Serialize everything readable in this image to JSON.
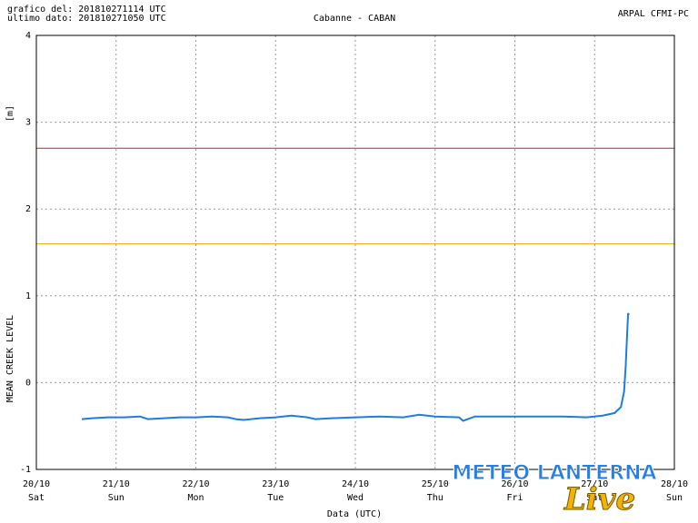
{
  "chart_data": {
    "type": "line",
    "header": [
      "grafico del: 201810271114 UTC",
      "ultimo dato: 201810271050 UTC"
    ],
    "title": "Cabanne - CABAN",
    "source": "ARPAL CFMI-PC",
    "y_label": "MEAN CREEK LEVEL",
    "y_unit": "[m]",
    "x_label": "Data (UTC)",
    "xlim": [
      20,
      28
    ],
    "xticks": [
      {
        "value": 20,
        "label": "20/10",
        "day": "Sat"
      },
      {
        "value": 21,
        "label": "21/10",
        "day": "Sun"
      },
      {
        "value": 22,
        "label": "22/10",
        "day": "Mon"
      },
      {
        "value": 23,
        "label": "23/10",
        "day": "Tue"
      },
      {
        "value": 24,
        "label": "24/10",
        "day": "Wed"
      },
      {
        "value": 25,
        "label": "25/10",
        "day": "Thu"
      },
      {
        "value": 26,
        "label": "26/10",
        "day": "Fri"
      },
      {
        "value": 27,
        "label": "27/10",
        "day": "Sat"
      },
      {
        "value": 28,
        "label": "28/10",
        "day": "Sun"
      }
    ],
    "ylim": [
      -1,
      4
    ],
    "yticks": [
      -1,
      0,
      1,
      2,
      3,
      4
    ],
    "grid": true,
    "thresholds": [
      {
        "value": 2.7,
        "color": "#d42020"
      },
      {
        "value": 1.6,
        "color": "#f0b020"
      }
    ],
    "series": [
      {
        "color": "#1a7fe0",
        "x": [
          20.57,
          20.7,
          20.9,
          21.1,
          21.3,
          21.4,
          21.6,
          21.8,
          22.0,
          22.2,
          22.4,
          22.5,
          22.6,
          22.8,
          23.0,
          23.2,
          23.4,
          23.5,
          23.7,
          24.0,
          24.3,
          24.6,
          24.8,
          25.0,
          25.3,
          25.35,
          25.5,
          25.8,
          26.0,
          26.3,
          26.6,
          26.9,
          27.1,
          27.25,
          27.33,
          27.37,
          27.39,
          27.41,
          27.42,
          27.43
        ],
        "values": [
          -0.42,
          -0.41,
          -0.4,
          -0.4,
          -0.39,
          -0.42,
          -0.41,
          -0.4,
          -0.4,
          -0.39,
          -0.4,
          -0.42,
          -0.43,
          -0.41,
          -0.4,
          -0.38,
          -0.4,
          -0.42,
          -0.41,
          -0.4,
          -0.39,
          -0.4,
          -0.37,
          -0.39,
          -0.4,
          -0.44,
          -0.39,
          -0.39,
          -0.39,
          -0.39,
          -0.39,
          -0.4,
          -0.38,
          -0.35,
          -0.28,
          -0.1,
          0.2,
          0.6,
          0.8,
          0.78
        ]
      }
    ],
    "watermark": [
      "METEO LANTERNA",
      "Live"
    ]
  }
}
